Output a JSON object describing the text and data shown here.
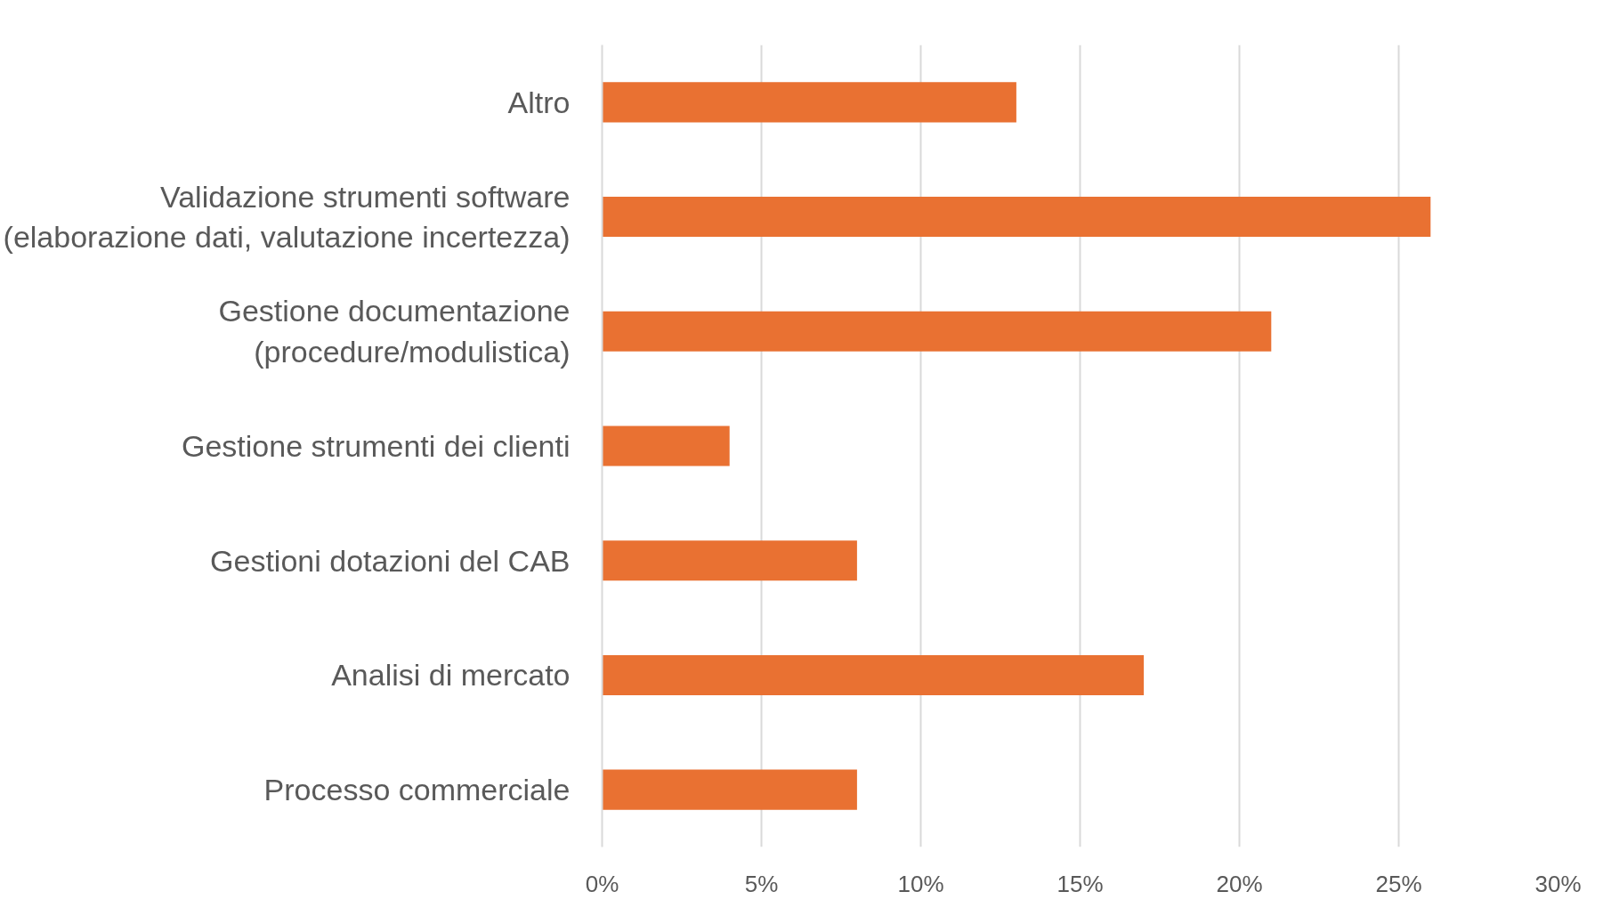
{
  "chart_data": {
    "type": "bar",
    "orientation": "horizontal",
    "categories": [
      "Altro",
      "Validazione strumenti software (elaborazione dati, valutazione incertezza)",
      "Gestione documentazione (procedure/modulistica)",
      "Gestione strumenti dei clienti",
      "Gestioni dotazioni del CAB",
      "Analisi di mercato",
      "Processo commerciale"
    ],
    "values": [
      13,
      26,
      21,
      4,
      8,
      17,
      8
    ],
    "color": "#e97132",
    "xlim": [
      0,
      30
    ],
    "xticks": [
      {
        "value": 0,
        "label": "0%"
      },
      {
        "value": 5,
        "label": "5%"
      },
      {
        "value": 10,
        "label": "10%"
      },
      {
        "value": 15,
        "label": "15%"
      },
      {
        "value": 20,
        "label": "20%"
      },
      {
        "value": 25,
        "label": "25%"
      },
      {
        "value": 30,
        "label": "30%"
      }
    ],
    "grid": "x"
  }
}
